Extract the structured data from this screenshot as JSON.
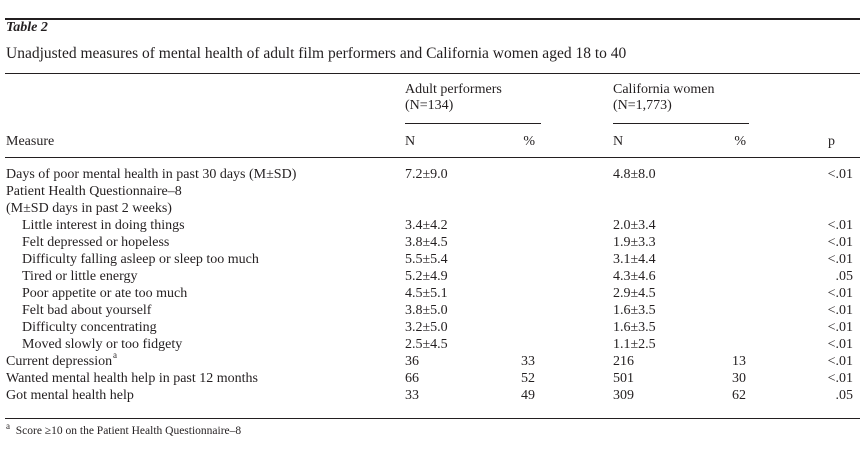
{
  "table": {
    "label": "Table 2",
    "title": "Unadjusted measures of mental health of adult film performers and California women aged 18 to 40",
    "groups": [
      {
        "name": "Adult performers",
        "n": "(N=134)"
      },
      {
        "name": "California women",
        "n": "(N=1,773)"
      }
    ],
    "columns": {
      "measure": "Measure",
      "n1": "N",
      "pct1": "%",
      "n2": "N",
      "pct2": "%",
      "p": "p"
    },
    "rows": [
      {
        "label": "Days of poor mental health in past 30 days (M±SD)",
        "sup": "",
        "indent": false,
        "n1": "7.2±9.0",
        "pct1": "",
        "n2": "4.8±8.0",
        "pct2": "",
        "p": "<.01"
      },
      {
        "label": "Patient Health Questionnaire–8",
        "sup": "",
        "indent": false,
        "n1": "",
        "pct1": "",
        "n2": "",
        "pct2": "",
        "p": ""
      },
      {
        "label": "(M±SD days in past 2 weeks)",
        "sup": "",
        "indent": false,
        "n1": "",
        "pct1": "",
        "n2": "",
        "pct2": "",
        "p": ""
      },
      {
        "label": "Little interest in doing things",
        "sup": "",
        "indent": true,
        "n1": "3.4±4.2",
        "pct1": "",
        "n2": "2.0±3.4",
        "pct2": "",
        "p": "<.01"
      },
      {
        "label": "Felt depressed or hopeless",
        "sup": "",
        "indent": true,
        "n1": "3.8±4.5",
        "pct1": "",
        "n2": "1.9±3.3",
        "pct2": "",
        "p": "<.01"
      },
      {
        "label": "Difficulty falling asleep or sleep too much",
        "sup": "",
        "indent": true,
        "n1": "5.5±5.4",
        "pct1": "",
        "n2": "3.1±4.4",
        "pct2": "",
        "p": "<.01"
      },
      {
        "label": "Tired or little energy",
        "sup": "",
        "indent": true,
        "n1": "5.2±4.9",
        "pct1": "",
        "n2": "4.3±4.6",
        "pct2": "",
        "p": ".05"
      },
      {
        "label": "Poor appetite or ate too much",
        "sup": "",
        "indent": true,
        "n1": "4.5±5.1",
        "pct1": "",
        "n2": "2.9±4.5",
        "pct2": "",
        "p": "<.01"
      },
      {
        "label": "Felt bad about yourself",
        "sup": "",
        "indent": true,
        "n1": "3.8±5.0",
        "pct1": "",
        "n2": "1.6±3.5",
        "pct2": "",
        "p": "<.01"
      },
      {
        "label": "Difficulty concentrating",
        "sup": "",
        "indent": true,
        "n1": "3.2±5.0",
        "pct1": "",
        "n2": "1.6±3.5",
        "pct2": "",
        "p": "<.01"
      },
      {
        "label": "Moved slowly or too fidgety",
        "sup": "",
        "indent": true,
        "n1": "2.5±4.5",
        "pct1": "",
        "n2": "1.1±2.5",
        "pct2": "",
        "p": "<.01"
      },
      {
        "label": "Current depression",
        "sup": "a",
        "indent": false,
        "n1": "36",
        "pct1": "33",
        "n2": "216",
        "pct2": "13",
        "p": "<.01"
      },
      {
        "label": "Wanted mental health help in past 12 months",
        "sup": "",
        "indent": false,
        "n1": "66",
        "pct1": "52",
        "n2": "501",
        "pct2": "30",
        "p": "<.01"
      },
      {
        "label": "Got mental health help",
        "sup": "",
        "indent": false,
        "n1": "33",
        "pct1": "49",
        "n2": "309",
        "pct2": "62",
        "p": ".05"
      }
    ],
    "footnote": {
      "marker": "a",
      "text": "Score ≥10 on the Patient Health Questionnaire–8"
    }
  }
}
